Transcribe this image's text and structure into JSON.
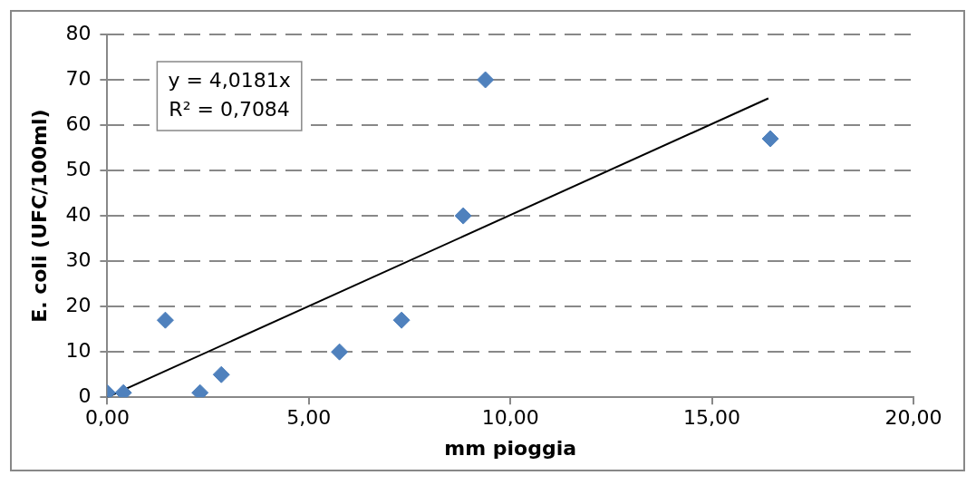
{
  "chart_data": {
    "type": "scatter",
    "xlabel": "mm pioggia",
    "ylabel": "E. coli (UFC/100ml)",
    "series": [
      {
        "type": "scatter",
        "color": "#4f81bd",
        "marker": "diamond",
        "x": [
          0.0,
          0.4,
          1.44,
          2.3,
          2.83,
          5.76,
          7.3,
          8.83,
          9.38,
          16.45
        ],
        "values": [
          1,
          1,
          17,
          1,
          5,
          10,
          17,
          40,
          70,
          57
        ]
      },
      {
        "type": "line",
        "color": "#000000",
        "marker": "none",
        "line_style": "solid",
        "x": [
          0,
          16.4
        ],
        "values": [
          0,
          65.9
        ]
      }
    ],
    "xlim": [
      0,
      20
    ],
    "xticks": [
      {
        "value": 0,
        "label": "0,00"
      },
      {
        "value": 5,
        "label": "5,00"
      },
      {
        "value": 10,
        "label": "10,00"
      },
      {
        "value": 15,
        "label": "15,00"
      },
      {
        "value": 20,
        "label": "20,00"
      }
    ],
    "ylim": [
      0,
      80
    ],
    "yticks": [
      0,
      10,
      20,
      30,
      40,
      50,
      60,
      70,
      80
    ],
    "grid": "y",
    "legend": false,
    "annotations": [
      "y = 4,0181x",
      "R² = 0,7084"
    ]
  }
}
